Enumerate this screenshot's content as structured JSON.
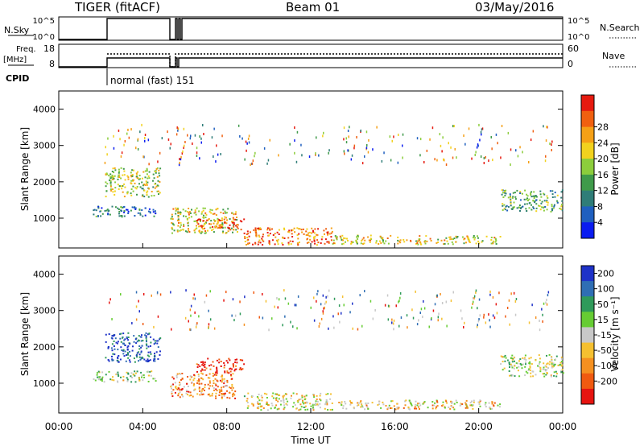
{
  "header": {
    "station": "TIGER (fitACF)",
    "beam": "Beam 01",
    "date": "03/May/2016"
  },
  "nsky_panel": {
    "left_label": "N.Sky",
    "right_label": "N.Search",
    "left_ticks": [
      "10^5",
      "10^0"
    ],
    "right_ticks": [
      "10^5",
      "10^0"
    ]
  },
  "freq_panel": {
    "left_label_1": "Freq.",
    "left_label_2": "[MHz]",
    "right_label": "Nave",
    "left_ticks": [
      "18",
      "8"
    ],
    "right_ticks": [
      "60",
      "0"
    ]
  },
  "cpid": {
    "label": "CPID",
    "mode_text": "normal (fast) 151"
  },
  "chart_data": [
    {
      "type": "heatmap",
      "name": "power",
      "ylabel": "Slant Range [km]",
      "ylim": [
        180,
        4500
      ],
      "yticks": [
        "1000",
        "2000",
        "3000",
        "4000"
      ],
      "colorbar_label": "Power [dB]",
      "colorbar_ticks": [
        "4",
        "8",
        "12",
        "16",
        "20",
        "24",
        "28"
      ],
      "colorbar_colors": [
        "#0a1cf0",
        "#1f5fbf",
        "#2f7d78",
        "#3f9a4a",
        "#8ccd3c",
        "#f2d21e",
        "#f5a016",
        "#f06010",
        "#e61a0f"
      ],
      "echo_regions": [
        {
          "t": [
            1.6,
            4.6
          ],
          "r": [
            1050,
            1350
          ],
          "level": 0.25
        },
        {
          "t": [
            2.2,
            4.8
          ],
          "r": [
            1600,
            2400
          ],
          "level": 0.55
        },
        {
          "t": [
            5.3,
            8.5
          ],
          "r": [
            600,
            1300
          ],
          "level": 0.6
        },
        {
          "t": [
            6.5,
            8.8
          ],
          "r": [
            700,
            1000
          ],
          "level": 0.85
        },
        {
          "t": [
            8.8,
            13.0
          ],
          "r": [
            280,
            750
          ],
          "level": 0.8
        },
        {
          "t": [
            13.0,
            21.0
          ],
          "r": [
            300,
            550
          ],
          "level": 0.6
        },
        {
          "t": [
            21.0,
            24.0
          ],
          "r": [
            1200,
            1800
          ],
          "level": 0.4
        }
      ]
    },
    {
      "type": "heatmap",
      "name": "velocity",
      "ylabel": "Slant Range [km]",
      "xlabel": "Time UT",
      "ylim": [
        180,
        4500
      ],
      "yticks": [
        "1000",
        "2000",
        "3000",
        "4000"
      ],
      "xticks": [
        "00:00",
        "04:00",
        "08:00",
        "12:00",
        "16:00",
        "20:00",
        "00:00"
      ],
      "xlim": [
        0,
        24
      ],
      "colorbar_label": "Velocity [m s⁻¹]",
      "colorbar_ticks": [
        "200",
        "100",
        "50",
        "15",
        "-15",
        "-50",
        "-100",
        "-200"
      ],
      "colorbar_colors": [
        "#1e32c8",
        "#2f6eb4",
        "#2f9a5a",
        "#66cc33",
        "#c8c8c8",
        "#f5c030",
        "#f59020",
        "#f05a10",
        "#e61410"
      ],
      "echo_regions": [
        {
          "t": [
            1.6,
            4.6
          ],
          "r": [
            1050,
            1350
          ],
          "level": 0.45
        },
        {
          "t": [
            2.2,
            4.8
          ],
          "r": [
            1600,
            2400
          ],
          "level": 0.1
        },
        {
          "t": [
            5.3,
            8.5
          ],
          "r": [
            600,
            1300
          ],
          "level": 0.7
        },
        {
          "t": [
            6.5,
            8.8
          ],
          "r": [
            1300,
            1700
          ],
          "level": 0.95
        },
        {
          "t": [
            8.8,
            13.0
          ],
          "r": [
            280,
            750
          ],
          "level": 0.55
        },
        {
          "t": [
            13.0,
            21.0
          ],
          "r": [
            300,
            550
          ],
          "level": 0.6
        },
        {
          "t": [
            21.0,
            24.0
          ],
          "r": [
            1200,
            1800
          ],
          "level": 0.45
        }
      ]
    }
  ]
}
